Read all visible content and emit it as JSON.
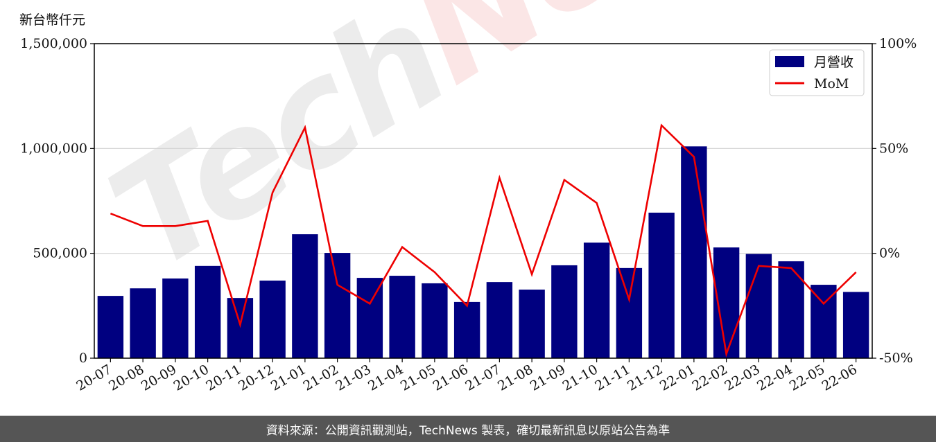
{
  "unit_label": "新台幣仟元",
  "footer_text": "資料來源：公開資訊觀測站，TechNews 製表，確切最新訊息以原站公告為準",
  "watermark": {
    "part1": "Tech",
    "part2": "News"
  },
  "colors": {
    "bar": "#000080",
    "line": "#ee0000",
    "grid": "#d0d0d0",
    "footer_bg": "#555555"
  },
  "chart_data": {
    "type": "bar",
    "categories": [
      "20-07",
      "20-08",
      "20-09",
      "20-10",
      "20-11",
      "20-12",
      "21-01",
      "21-02",
      "21-03",
      "21-04",
      "21-05",
      "21-06",
      "21-07",
      "21-08",
      "21-09",
      "21-10",
      "21-11",
      "21-12",
      "22-01",
      "22-02",
      "22-03",
      "22-04",
      "22-05",
      "22-06"
    ],
    "series": [
      {
        "name": "月營收",
        "type": "bar",
        "axis": "left",
        "values": [
          297000,
          333000,
          380000,
          440000,
          287000,
          370000,
          591000,
          502000,
          383000,
          393000,
          357000,
          268000,
          363000,
          327000,
          443000,
          551000,
          430000,
          694000,
          1010000,
          528000,
          497000,
          462000,
          350000,
          316000
        ]
      },
      {
        "name": "MoM",
        "type": "line",
        "axis": "right",
        "values": [
          19,
          13,
          13,
          15.5,
          -34,
          29,
          60,
          -15,
          -24,
          3,
          -9,
          -25,
          36,
          -10,
          35,
          24,
          -22,
          61,
          46,
          -48,
          -6,
          -7,
          -24,
          -9
        ]
      }
    ],
    "y_left": {
      "ylim": [
        0,
        1500000
      ],
      "ticks": [
        0,
        500000,
        1000000,
        1500000
      ],
      "tick_labels": [
        "0",
        "500,000",
        "1,000,000",
        "1,500,000"
      ]
    },
    "y_right": {
      "ylim": [
        -50,
        100
      ],
      "ticks": [
        -50,
        0,
        50,
        100
      ],
      "tick_labels": [
        "-50%",
        "0%",
        "50%",
        "100%"
      ]
    },
    "grid": "horizontal",
    "legend": {
      "placement": "top-right",
      "entries": [
        "月營收",
        "MoM"
      ]
    }
  }
}
